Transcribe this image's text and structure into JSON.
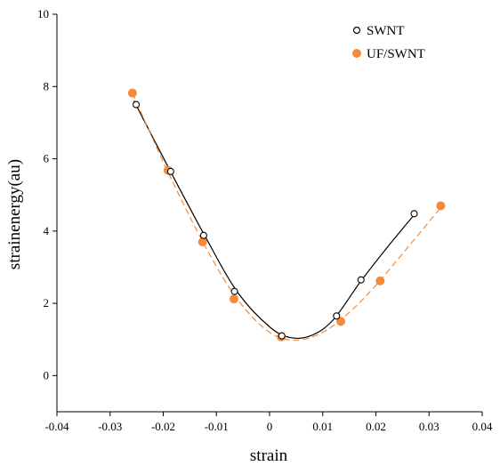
{
  "chart_data": {
    "type": "scatter",
    "title": "",
    "xlabel": "strain",
    "ylabel": "strainenergy(au)",
    "xlim": [
      -0.04,
      0.04
    ],
    "ylim": [
      -1,
      10
    ],
    "xticks": [
      -0.04,
      -0.03,
      -0.02,
      -0.01,
      0,
      0.01,
      0.02,
      0.03,
      0.04
    ],
    "xtick_labels": [
      "-0.04",
      "-0.03",
      "-0.02",
      "-0.01",
      "0",
      "0.01",
      "0.02",
      "0.03",
      "0.04"
    ],
    "yticks": [
      0,
      2,
      4,
      6,
      8,
      10
    ],
    "ytick_labels": [
      "0",
      "2",
      "4",
      "6",
      "8",
      "10"
    ],
    "grid": false,
    "legend_position": "top-right",
    "series": [
      {
        "name": "SWNT",
        "marker": "open-circle",
        "color": "#000000",
        "fit_line": "solid",
        "fit_color": "#000000",
        "points": [
          {
            "x": -0.0251,
            "y": 7.5
          },
          {
            "x": -0.0186,
            "y": 5.65
          },
          {
            "x": -0.0124,
            "y": 3.88
          },
          {
            "x": -0.0066,
            "y": 2.33
          },
          {
            "x": 0.0023,
            "y": 1.1
          },
          {
            "x": 0.0126,
            "y": 1.65
          },
          {
            "x": 0.0172,
            "y": 2.65
          },
          {
            "x": 0.0272,
            "y": 4.48
          }
        ],
        "fit": [
          {
            "x": -0.0255,
            "y": 7.6
          },
          {
            "x": -0.019,
            "y": 5.75
          },
          {
            "x": -0.012,
            "y": 3.82
          },
          {
            "x": -0.006,
            "y": 2.3
          },
          {
            "x": 0,
            "y": 1.35
          },
          {
            "x": 0.004,
            "y": 1.05
          },
          {
            "x": 0.008,
            "y": 1.12
          },
          {
            "x": 0.012,
            "y": 1.55
          },
          {
            "x": 0.0172,
            "y": 2.62
          },
          {
            "x": 0.0222,
            "y": 3.56
          },
          {
            "x": 0.0272,
            "y": 4.45
          }
        ]
      },
      {
        "name": "UF/SWNT",
        "marker": "filled-circle",
        "color": "#f58a3a",
        "fit_line": "dashed",
        "fit_color": "#f58a3a",
        "points": [
          {
            "x": -0.0258,
            "y": 7.82
          },
          {
            "x": -0.0191,
            "y": 5.68
          },
          {
            "x": -0.0126,
            "y": 3.7
          },
          {
            "x": -0.0067,
            "y": 2.12
          },
          {
            "x": 0.0022,
            "y": 1.07
          },
          {
            "x": 0.0134,
            "y": 1.5
          },
          {
            "x": 0.0208,
            "y": 2.62
          },
          {
            "x": 0.0322,
            "y": 4.7
          }
        ],
        "fit": [
          {
            "x": -0.0258,
            "y": 7.82
          },
          {
            "x": -0.019,
            "y": 5.6
          },
          {
            "x": -0.012,
            "y": 3.55
          },
          {
            "x": -0.006,
            "y": 2.1
          },
          {
            "x": 0,
            "y": 1.2
          },
          {
            "x": 0.005,
            "y": 0.98
          },
          {
            "x": 0.01,
            "y": 1.2
          },
          {
            "x": 0.015,
            "y": 1.75
          },
          {
            "x": 0.02,
            "y": 2.5
          },
          {
            "x": 0.026,
            "y": 3.55
          },
          {
            "x": 0.0322,
            "y": 4.65
          }
        ]
      }
    ]
  }
}
